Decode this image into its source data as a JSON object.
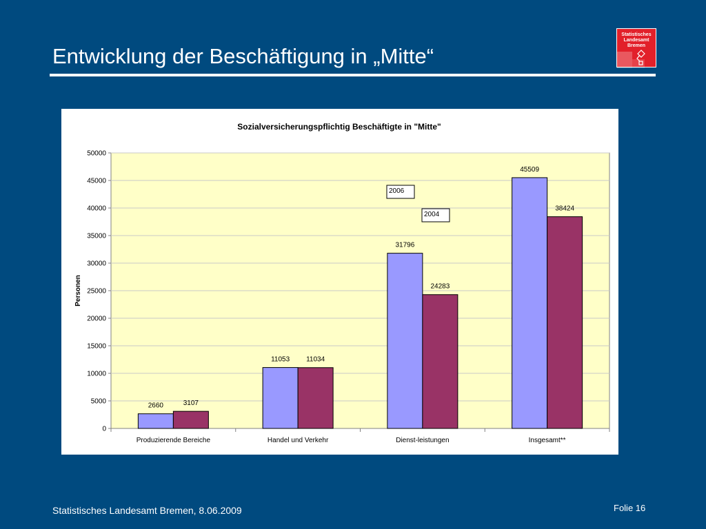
{
  "slide": {
    "title": "Entwicklung der Beschäftigung in „Mitte“",
    "footer_left": "Statistisches Landesamt Bremen, 8.06.2009",
    "footer_right": "Folie 16"
  },
  "logo": {
    "lines": [
      "Statistisches",
      "Landesamt",
      "Bremen"
    ],
    "icon": "bremen-key-icon",
    "color": "#e2202a"
  },
  "colors": {
    "background": "#004a7f",
    "plot_area": "#ffffc8",
    "series_2006": "#9999ff",
    "series_2004": "#993366"
  },
  "chart_data": {
    "type": "bar",
    "title": "Sozialversicherungspflichtig Beschäftigte in \"Mitte\"",
    "xlabel": "",
    "ylabel": "Personen",
    "ylim": [
      0,
      50000
    ],
    "yticks": [
      0,
      5000,
      10000,
      15000,
      20000,
      25000,
      30000,
      35000,
      40000,
      45000,
      50000
    ],
    "grid": true,
    "categories": [
      "Produzierende Bereiche",
      "Handel und Verkehr",
      "Dienst-leistungen",
      "Insgesamt**"
    ],
    "series": [
      {
        "name": "2006",
        "values": [
          2660,
          11053,
          31796,
          45509
        ],
        "color": "#9999ff"
      },
      {
        "name": "2004",
        "values": [
          3107,
          11034,
          24283,
          38424
        ],
        "color": "#993366"
      }
    ],
    "data_labels": true,
    "legend": "inside-plot"
  }
}
